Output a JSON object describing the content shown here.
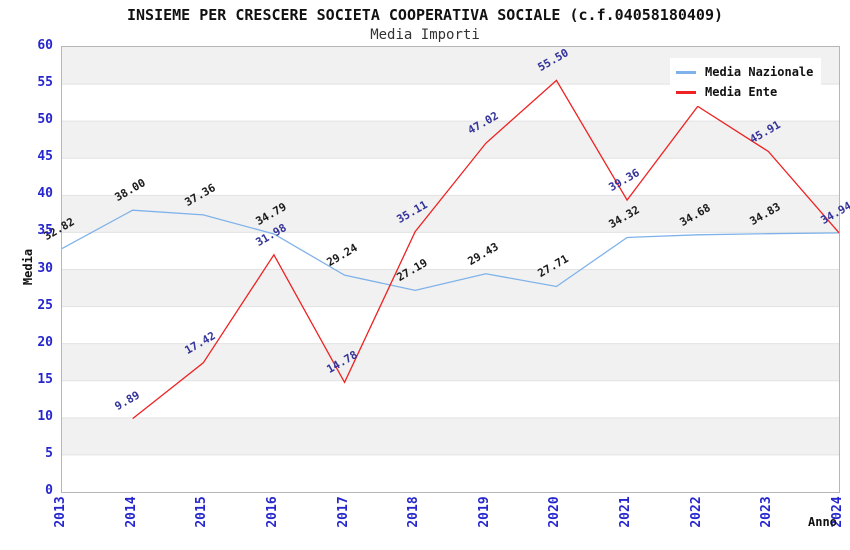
{
  "header": {
    "title": "INSIEME PER CRESCERE SOCIETA COOPERATIVA SOCIALE (c.f.04058180409)",
    "subtitle": "Media Importi"
  },
  "chart_data": {
    "type": "line",
    "x": [
      2013,
      2014,
      2015,
      2016,
      2017,
      2018,
      2019,
      2020,
      2021,
      2022,
      2023,
      2024
    ],
    "series": [
      {
        "name": "Media Nazionale",
        "color": "#7FB2EA",
        "label_color": "#1A1A1A",
        "values": [
          32.82,
          38.0,
          37.36,
          34.79,
          29.24,
          27.19,
          29.43,
          27.71,
          34.32,
          34.68,
          34.83,
          34.94
        ],
        "labels": [
          "32.82",
          "38.00",
          "37.36",
          "34.79",
          "29.24",
          "27.19",
          "29.43",
          "27.71",
          "34.32",
          "34.68",
          "34.83",
          ""
        ]
      },
      {
        "name": "Media Ente",
        "color": "#EE2222",
        "label_color": "#333399",
        "values": [
          null,
          9.89,
          17.42,
          31.98,
          14.78,
          35.11,
          47.02,
          55.5,
          39.36,
          52.0,
          45.91,
          34.94
        ],
        "labels": [
          null,
          "9.89",
          "17.42",
          "31.98",
          "14.78",
          "35.11",
          "47.02",
          "55.50",
          "39.36",
          "",
          "45.91",
          "34.94"
        ]
      }
    ],
    "ylabel": "Media",
    "xlabel": "Anno",
    "ylim": [
      0,
      60
    ],
    "ytick_step": 5,
    "legend_position": "top-right",
    "grid": "horizontal-bands",
    "colors": {
      "tick_label": "#2626CE",
      "band_gray": "#F1F1F1",
      "band_white": "#FFFFFF",
      "plot_border": "#B6B6B6",
      "gridline": "#E2E2E2"
    }
  }
}
